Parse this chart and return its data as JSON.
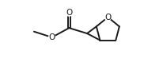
{
  "bg_color": "#ffffff",
  "line_color": "#1a1a1a",
  "line_width": 1.4,
  "figsize": [
    1.82,
    0.83
  ],
  "dpi": 100,
  "xlim": [
    0.0,
    9.0
  ],
  "ylim": [
    0.5,
    5.0
  ]
}
